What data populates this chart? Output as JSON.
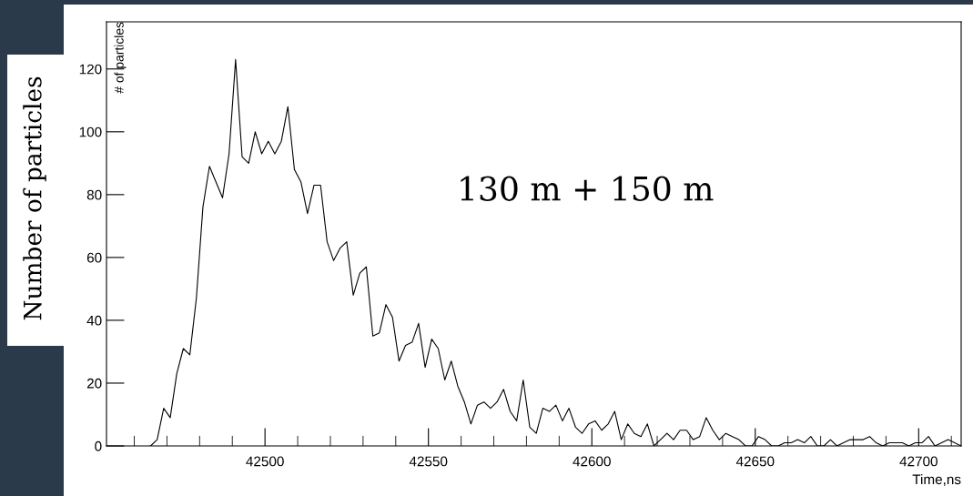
{
  "chart_data": {
    "type": "line",
    "xlabel": "Time,ns",
    "ylabel": "Number of particles",
    "annotations": [
      "# of particles",
      "130 m + 150 m"
    ],
    "xlim": [
      42451.5,
      42713
    ],
    "xticks": [
      42500,
      42550,
      42600,
      42650,
      42700
    ],
    "ylim": [
      0,
      135
    ],
    "yticks": [
      0,
      20,
      40,
      60,
      80,
      100,
      120
    ],
    "grid": false,
    "legend": false,
    "marker": "none",
    "line_style": "solid",
    "series": [
      {
        "color": "#000000",
        "x": [
          42465,
          42467,
          42469,
          42471,
          42473,
          42475,
          42477,
          42479,
          42481,
          42483,
          42485,
          42487,
          42489,
          42491,
          42493,
          42495,
          42497,
          42499,
          42501,
          42503,
          42505,
          42507,
          42509,
          42511,
          42513,
          42515,
          42517,
          42519,
          42521,
          42523,
          42525,
          42527,
          42529,
          42531,
          42533,
          42535,
          42537,
          42539,
          42541,
          42543,
          42545,
          42547,
          42549,
          42551,
          42553,
          42555,
          42557,
          42559,
          42561,
          42563,
          42565,
          42567,
          42569,
          42571,
          42573,
          42575,
          42577,
          42579,
          42581,
          42583,
          42585,
          42587,
          42589,
          42591,
          42593,
          42595,
          42597,
          42599,
          42601,
          42603,
          42605,
          42607,
          42609,
          42611,
          42613,
          42615,
          42617,
          42619,
          42621,
          42623,
          42625,
          42627,
          42629,
          42631,
          42633,
          42635,
          42637,
          42639,
          42641,
          42643,
          42645,
          42647,
          42649,
          42651,
          42653,
          42655,
          42657,
          42659,
          42661,
          42663,
          42665,
          42667,
          42669,
          42671,
          42673,
          42675,
          42677,
          42679,
          42681,
          42683,
          42685,
          42687,
          42689,
          42691,
          42693,
          42695,
          42697,
          42699,
          42701,
          42703,
          42705,
          42707,
          42709,
          42711,
          42713
        ],
        "values": [
          0,
          2,
          12,
          9,
          23,
          31,
          29,
          47,
          76,
          89,
          84,
          79,
          93,
          123,
          92,
          90,
          100,
          93,
          97,
          93,
          97,
          108,
          88,
          84,
          74,
          83,
          83,
          65,
          59,
          63,
          65,
          48,
          55,
          57,
          35,
          36,
          45,
          41,
          27,
          32,
          33,
          39,
          25,
          34,
          31,
          21,
          27,
          19,
          14,
          7,
          13,
          14,
          12,
          14,
          18,
          11,
          8,
          21,
          6,
          4,
          12,
          11,
          13,
          8,
          12,
          6,
          4,
          7,
          8,
          5,
          7,
          11,
          2,
          7,
          4,
          3,
          7,
          0,
          2,
          4,
          2,
          5,
          5,
          2,
          3,
          9,
          5,
          2,
          4,
          3,
          2,
          0,
          0,
          3,
          2,
          0,
          0,
          1,
          1,
          2,
          1,
          3,
          0,
          0,
          2,
          0,
          1,
          2,
          2,
          2,
          3,
          1,
          0,
          1,
          1,
          1,
          0,
          1,
          1,
          3,
          0,
          1,
          2,
          1,
          0
        ]
      }
    ]
  }
}
